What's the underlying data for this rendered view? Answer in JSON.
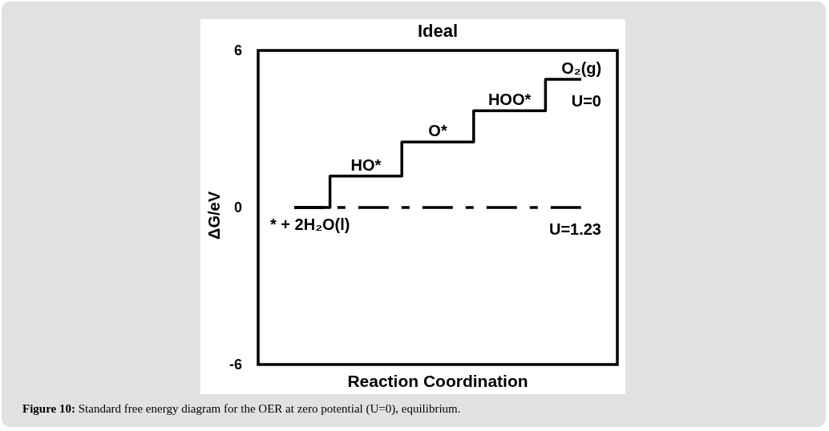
{
  "chart_data": {
    "type": "step",
    "title": "Ideal",
    "xlabel": "Reaction Coordination",
    "ylabel": "ΔG/eV",
    "categories": [
      null,
      null,
      null,
      null,
      null
    ],
    "series": [
      {
        "name": "U=0",
        "color": "#000000",
        "values": [
          0,
          1.2,
          2.5,
          3.7,
          4.9
        ],
        "line_style": "solid"
      },
      {
        "name": "U=1.23",
        "color": "#000000",
        "values": [
          0,
          0,
          0,
          0,
          0
        ],
        "line_style": "dashed"
      }
    ],
    "ylim": [
      -6,
      6
    ],
    "yticks": [
      -6,
      0,
      6
    ],
    "tick_labels": "y",
    "annotations": [
      {
        "text": "* + 2H₂O(l)",
        "y": 0
      },
      {
        "text": "HO*",
        "y": 1.2
      },
      {
        "text": "O*",
        "y": 2.5
      },
      {
        "text": "HOO*",
        "y": 3.7
      },
      {
        "text": "O₂(g)",
        "y": 4.9
      },
      "Figure 10: Standard free energy diagram for the OER at zero potential (U=0), equilibrium."
    ]
  }
}
